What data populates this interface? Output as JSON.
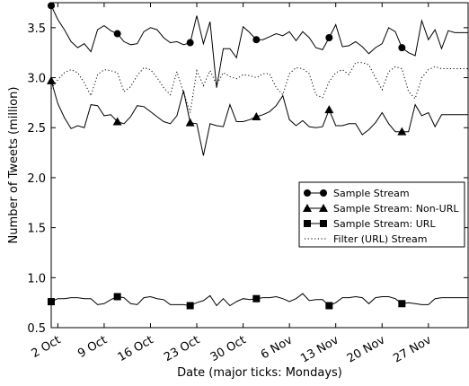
{
  "chart_data": {
    "type": "line",
    "title": "",
    "xlabel": "Date (major ticks: Mondays)",
    "ylabel": "Number of Tweets (million)",
    "ylim": [
      0.5,
      3.75
    ],
    "xlim": [
      "2012-10-01",
      "2012-12-03"
    ],
    "x_ticks": [
      {
        "date": "2012-10-02",
        "label": "2 Oct"
      },
      {
        "date": "2012-10-09",
        "label": "9 Oct"
      },
      {
        "date": "2012-10-16",
        "label": "16 Oct"
      },
      {
        "date": "2012-10-23",
        "label": "23 Oct"
      },
      {
        "date": "2012-10-30",
        "label": "30 Oct"
      },
      {
        "date": "2012-11-06",
        "label": "6 Nov"
      },
      {
        "date": "2012-11-13",
        "label": "13 Nov"
      },
      {
        "date": "2012-11-20",
        "label": "20 Nov"
      },
      {
        "date": "2012-11-27",
        "label": "27 Nov"
      }
    ],
    "y_ticks": [
      "0.5",
      "1.0",
      "1.5",
      "2.0",
      "2.5",
      "3.0",
      "3.5"
    ],
    "grid": false,
    "legend_position": "center-right",
    "x": [
      "2012-10-01",
      "2012-10-02",
      "2012-10-03",
      "2012-10-04",
      "2012-10-05",
      "2012-10-06",
      "2012-10-07",
      "2012-10-08",
      "2012-10-09",
      "2012-10-10",
      "2012-10-11",
      "2012-10-12",
      "2012-10-13",
      "2012-10-14",
      "2012-10-15",
      "2012-10-16",
      "2012-10-17",
      "2012-10-18",
      "2012-10-19",
      "2012-10-20",
      "2012-10-21",
      "2012-10-22",
      "2012-10-23",
      "2012-10-24",
      "2012-10-25",
      "2012-10-26",
      "2012-10-27",
      "2012-10-28",
      "2012-10-29",
      "2012-10-30",
      "2012-10-31",
      "2012-11-01",
      "2012-11-02",
      "2012-11-03",
      "2012-11-04",
      "2012-11-05",
      "2012-11-06",
      "2012-11-07",
      "2012-11-08",
      "2012-11-09",
      "2012-11-10",
      "2012-11-11",
      "2012-11-12",
      "2012-11-13",
      "2012-11-14",
      "2012-11-15",
      "2012-11-16",
      "2012-11-17",
      "2012-11-18",
      "2012-11-19",
      "2012-11-20",
      "2012-11-21",
      "2012-11-22",
      "2012-11-23",
      "2012-11-24",
      "2012-11-25",
      "2012-11-26",
      "2012-11-27",
      "2012-11-28",
      "2012-11-29",
      "2012-11-30",
      "2012-12-01",
      "2012-12-02",
      "2012-12-03"
    ],
    "series": [
      {
        "name": "Sample Stream",
        "style": "solid",
        "marker": "circle",
        "color": "#000000",
        "marker_dates": [
          "2012-10-01",
          "2012-10-11",
          "2012-10-22",
          "2012-11-01",
          "2012-11-12",
          "2012-11-23"
        ],
        "values": [
          3.72,
          3.58,
          3.48,
          3.36,
          3.3,
          3.34,
          3.26,
          3.48,
          3.52,
          3.47,
          3.44,
          3.36,
          3.33,
          3.34,
          3.46,
          3.5,
          3.48,
          3.4,
          3.35,
          3.36,
          3.33,
          3.35,
          3.62,
          3.34,
          3.56,
          2.9,
          3.29,
          3.29,
          3.2,
          3.51,
          3.45,
          3.38,
          3.38,
          3.41,
          3.44,
          3.42,
          3.46,
          3.37,
          3.46,
          3.4,
          3.3,
          3.28,
          3.4,
          3.53,
          3.31,
          3.32,
          3.36,
          3.31,
          3.24,
          3.3,
          3.34,
          3.5,
          3.46,
          3.3,
          3.25,
          3.22,
          3.57,
          3.38,
          3.48,
          3.29,
          3.47,
          3.45,
          3.45,
          3.45
        ]
      },
      {
        "name": "Sample Stream: Non-URL",
        "style": "solid",
        "marker": "triangle",
        "color": "#000000",
        "marker_dates": [
          "2012-10-01",
          "2012-10-11",
          "2012-10-22",
          "2012-11-01",
          "2012-11-12",
          "2012-11-23"
        ],
        "values": [
          2.97,
          2.74,
          2.6,
          2.49,
          2.52,
          2.5,
          2.73,
          2.72,
          2.62,
          2.63,
          2.56,
          2.54,
          2.61,
          2.72,
          2.71,
          2.66,
          2.61,
          2.56,
          2.54,
          2.62,
          2.87,
          2.55,
          2.54,
          2.22,
          2.54,
          2.52,
          2.51,
          2.73,
          2.56,
          2.56,
          2.58,
          2.61,
          2.63,
          2.66,
          2.72,
          2.82,
          2.58,
          2.52,
          2.57,
          2.51,
          2.5,
          2.51,
          2.68,
          2.52,
          2.52,
          2.54,
          2.54,
          2.43,
          2.48,
          2.55,
          2.65,
          2.54,
          2.46,
          2.46,
          2.46,
          2.73,
          2.62,
          2.65,
          2.51,
          2.63,
          2.63,
          2.63,
          2.63,
          2.63
        ]
      },
      {
        "name": "Sample Stream: URL",
        "style": "solid",
        "marker": "square",
        "color": "#000000",
        "marker_dates": [
          "2012-10-01",
          "2012-10-11",
          "2012-10-22",
          "2012-11-01",
          "2012-11-12",
          "2012-11-23"
        ],
        "values": [
          0.76,
          0.79,
          0.79,
          0.8,
          0.8,
          0.79,
          0.79,
          0.73,
          0.74,
          0.78,
          0.81,
          0.8,
          0.74,
          0.73,
          0.8,
          0.81,
          0.79,
          0.78,
          0.73,
          0.73,
          0.73,
          0.72,
          0.75,
          0.77,
          0.82,
          0.72,
          0.79,
          0.72,
          0.76,
          0.79,
          0.78,
          0.79,
          0.8,
          0.8,
          0.81,
          0.79,
          0.76,
          0.79,
          0.84,
          0.77,
          0.78,
          0.78,
          0.72,
          0.75,
          0.8,
          0.8,
          0.81,
          0.8,
          0.74,
          0.8,
          0.81,
          0.81,
          0.79,
          0.74,
          0.75,
          0.74,
          0.73,
          0.73,
          0.79,
          0.8,
          0.8,
          0.8,
          0.8,
          0.8
        ]
      },
      {
        "name": "Filter (URL) Stream",
        "style": "dotted",
        "marker": "none",
        "color": "#000000",
        "values": [
          2.89,
          2.98,
          3.05,
          3.08,
          3.05,
          2.95,
          2.82,
          3.03,
          3.08,
          3.07,
          3.05,
          2.86,
          2.91,
          3.02,
          3.1,
          3.08,
          3.0,
          2.9,
          2.83,
          3.06,
          2.85,
          2.65,
          3.07,
          2.92,
          3.07,
          2.93,
          3.05,
          3.01,
          2.99,
          3.03,
          3.02,
          3.0,
          3.04,
          3.04,
          2.9,
          2.83,
          3.04,
          3.1,
          3.09,
          3.04,
          2.83,
          2.8,
          2.96,
          3.05,
          3.08,
          3.03,
          3.15,
          3.15,
          3.13,
          3.0,
          2.88,
          3.06,
          3.11,
          3.09,
          2.86,
          2.79,
          3.0,
          3.08,
          3.11,
          3.09,
          3.09,
          3.09,
          3.09,
          3.09
        ]
      }
    ]
  }
}
